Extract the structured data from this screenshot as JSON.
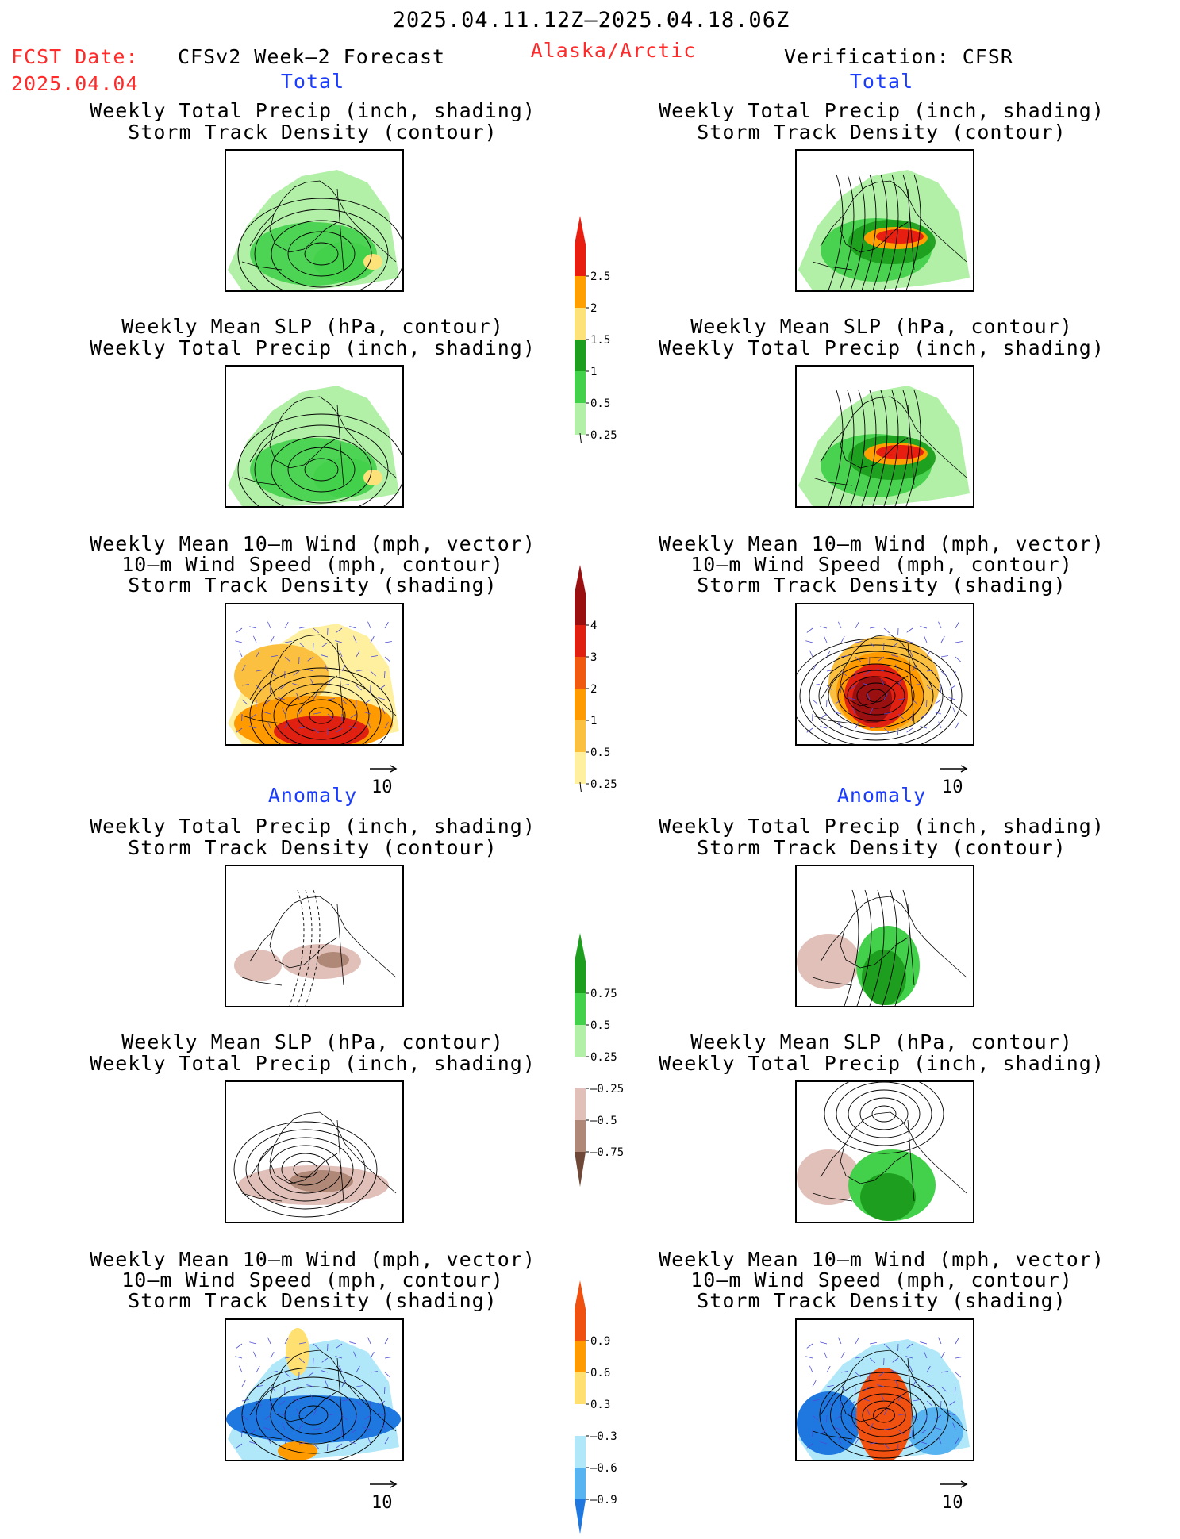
{
  "header": {
    "date_range": "2025.04.11.12Z–2025.04.18.06Z",
    "fcst_label": "FCST Date:",
    "fcst_date": "2025.04.04",
    "model_title": "CFSv2 Week–2 Forecast",
    "region": "Alaska/Arctic",
    "verification": "Verification: CFSR"
  },
  "section_labels": {
    "total": "Total",
    "anomaly": "Anomaly"
  },
  "panel_titles": {
    "precip_storm": [
      "Weekly Total Precip (inch, shading)",
      "Storm Track Density (contour)"
    ],
    "slp_precip": [
      "Weekly Mean SLP (hPa, contour)",
      "Weekly Total Precip (inch, shading)"
    ],
    "wind_storm": [
      "Weekly Mean 10–m Wind (mph, vector)",
      "10–m Wind Speed (mph, contour)",
      "Storm Track Density (shading)"
    ]
  },
  "vector_reference": "10",
  "chart_data": [
    {
      "type": "heatmap",
      "name_ref": "colorbar-total-precip",
      "levels": [
        "2.5",
        "2",
        "1.5",
        "1",
        "0.5",
        "0.25"
      ],
      "colors": [
        "#e81e10",
        "#ffa000",
        "#fde27a",
        "#1e9e1e",
        "#43d04a",
        "#b2f0a8"
      ]
    },
    {
      "type": "heatmap",
      "name_ref": "colorbar-total-storm",
      "levels": [
        "4",
        "3",
        "2",
        "1",
        "0.5",
        "0.25"
      ],
      "colors": [
        "#9a0f0f",
        "#e02010",
        "#f05a10",
        "#ff9a00",
        "#fbc040",
        "#fff0a0"
      ]
    },
    {
      "type": "heatmap",
      "name_ref": "colorbar-anomaly-precip",
      "levels": [
        "0.75",
        "0.5",
        "0.25",
        "–0.25",
        "–0.5",
        "–0.75"
      ],
      "colors": [
        "#1e9e1e",
        "#43d04a",
        "#b2f0a8",
        "#ffffff",
        "#e0c0b8",
        "#b08878",
        "#704838"
      ]
    },
    {
      "type": "heatmap",
      "name_ref": "colorbar-anomaly-storm",
      "levels": [
        "0.9",
        "0.6",
        "0.3",
        "–0.3",
        "–0.6",
        "–0.9"
      ],
      "colors": [
        "#f05010",
        "#ff9a00",
        "#ffe070",
        "#ffffff",
        "#b0e8fa",
        "#58b4f0",
        "#1e78e0"
      ]
    }
  ],
  "colors": {
    "red_text": "#ff2a2a",
    "blue_text": "#1a3cff"
  }
}
